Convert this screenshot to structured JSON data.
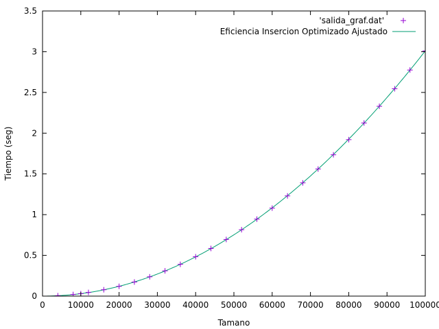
{
  "chart_data": {
    "type": "scatter",
    "title": "",
    "xlabel": "Tamano",
    "ylabel": "Tiempo (seg)",
    "xlim": [
      0,
      100000
    ],
    "ylim": [
      0,
      3.5
    ],
    "xticks": [
      0,
      10000,
      20000,
      30000,
      40000,
      50000,
      60000,
      70000,
      80000,
      90000,
      100000
    ],
    "xtick_labels": [
      "0",
      "10000",
      "20000",
      "30000",
      "40000",
      "50000",
      "60000",
      "70000",
      "80000",
      "90000",
      "100000"
    ],
    "yticks": [
      0,
      0.5,
      1,
      1.5,
      2,
      2.5,
      3,
      3.5
    ],
    "ytick_labels": [
      "0",
      "0.5",
      "1",
      "1.5",
      "2",
      "2.5",
      "3",
      "3.5"
    ],
    "grid": false,
    "legend_position": "top-right",
    "series": [
      {
        "name": "'salida_graf.dat'",
        "kind": "points",
        "marker": "plus",
        "color": "#9400d3",
        "x": [
          4000,
          8000,
          10000,
          12000,
          16000,
          20000,
          24000,
          28000,
          32000,
          36000,
          40000,
          44000,
          48000,
          52000,
          56000,
          60000,
          64000,
          68000,
          72000,
          76000,
          80000,
          84000,
          88000,
          92000,
          96000,
          100000
        ],
        "y": [
          0.005,
          0.02,
          0.03,
          0.045,
          0.078,
          0.12,
          0.173,
          0.237,
          0.31,
          0.39,
          0.483,
          0.585,
          0.695,
          0.815,
          0.945,
          1.08,
          1.23,
          1.39,
          1.56,
          1.735,
          1.92,
          2.125,
          2.33,
          2.545,
          2.775,
          3.01
        ]
      },
      {
        "name": "Eficiencia Insercion Optimizado Ajustado",
        "kind": "line",
        "color": "#009e73",
        "fit": {
          "a": 3.01e-10,
          "b": 0,
          "c": 0
        }
      }
    ]
  }
}
